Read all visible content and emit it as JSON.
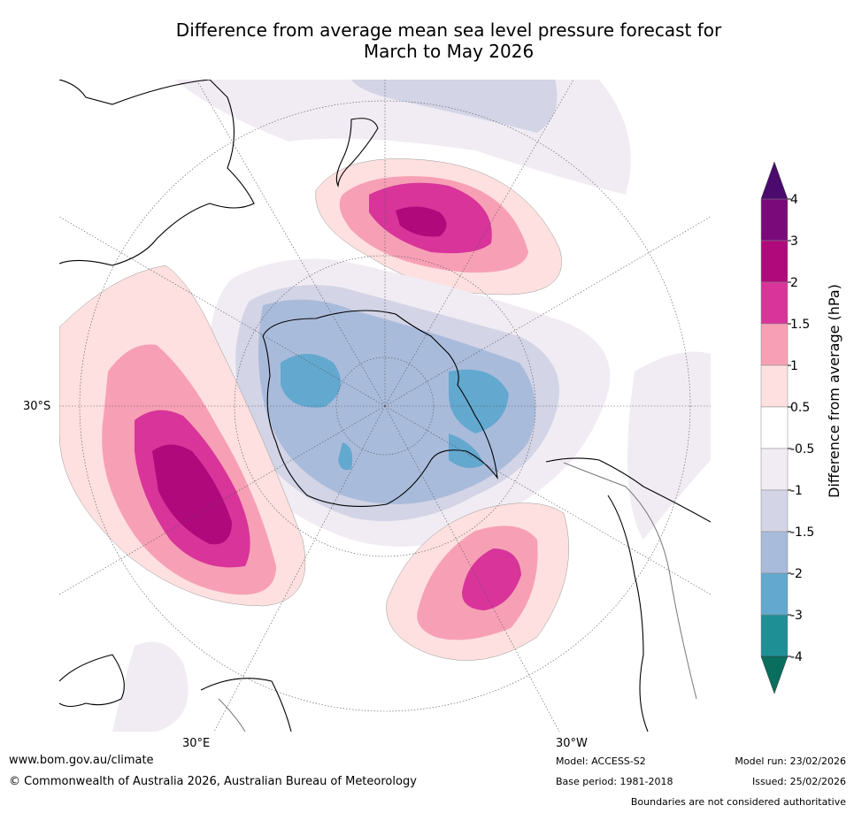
{
  "title_line1": "Difference from average mean sea level pressure forecast for",
  "title_line2": "March to May 2026",
  "colorbar": {
    "label": "Difference from average (hPa)",
    "ticks": [
      "4",
      "3",
      "2",
      "1.5",
      "1",
      "0.5",
      "-0.5",
      "-1",
      "-1.5",
      "-2",
      "-3",
      "-4"
    ],
    "colors": [
      "#4b0a6e",
      "#7a0a7a",
      "#b0097c",
      "#d8349a",
      "#f7a0b5",
      "#fde0df",
      "#ffffff",
      "#f1ecf3",
      "#d3d4e6",
      "#a9bbdb",
      "#63a8cf",
      "#1f8f96",
      "#0a6e5e"
    ]
  },
  "map": {
    "labels": {
      "lat_30s": "30°S",
      "lon_30e": "30°E",
      "lon_30w": "30°W"
    },
    "anomalies": [
      {
        "name": "high-tasman-nz",
        "peak_hpa": 2
      },
      {
        "name": "high-south-indian",
        "peak_hpa": 3
      },
      {
        "name": "high-south-atlantic",
        "peak_hpa": 1.5
      },
      {
        "name": "low-antarctica",
        "peak_hpa": -2
      }
    ]
  },
  "footer": {
    "website": "www.bom.gov.au/climate",
    "copyright": "© Commonwealth of Australia 2026, Australian Bureau of Meteorology",
    "model": "Model: ACCESS-S2",
    "base_period": "Base period: 1981-2018",
    "model_run": "Model run: 23/02/2026",
    "issued": "Issued: 25/02/2026",
    "disclaimer": "Boundaries are not considered authoritative"
  }
}
